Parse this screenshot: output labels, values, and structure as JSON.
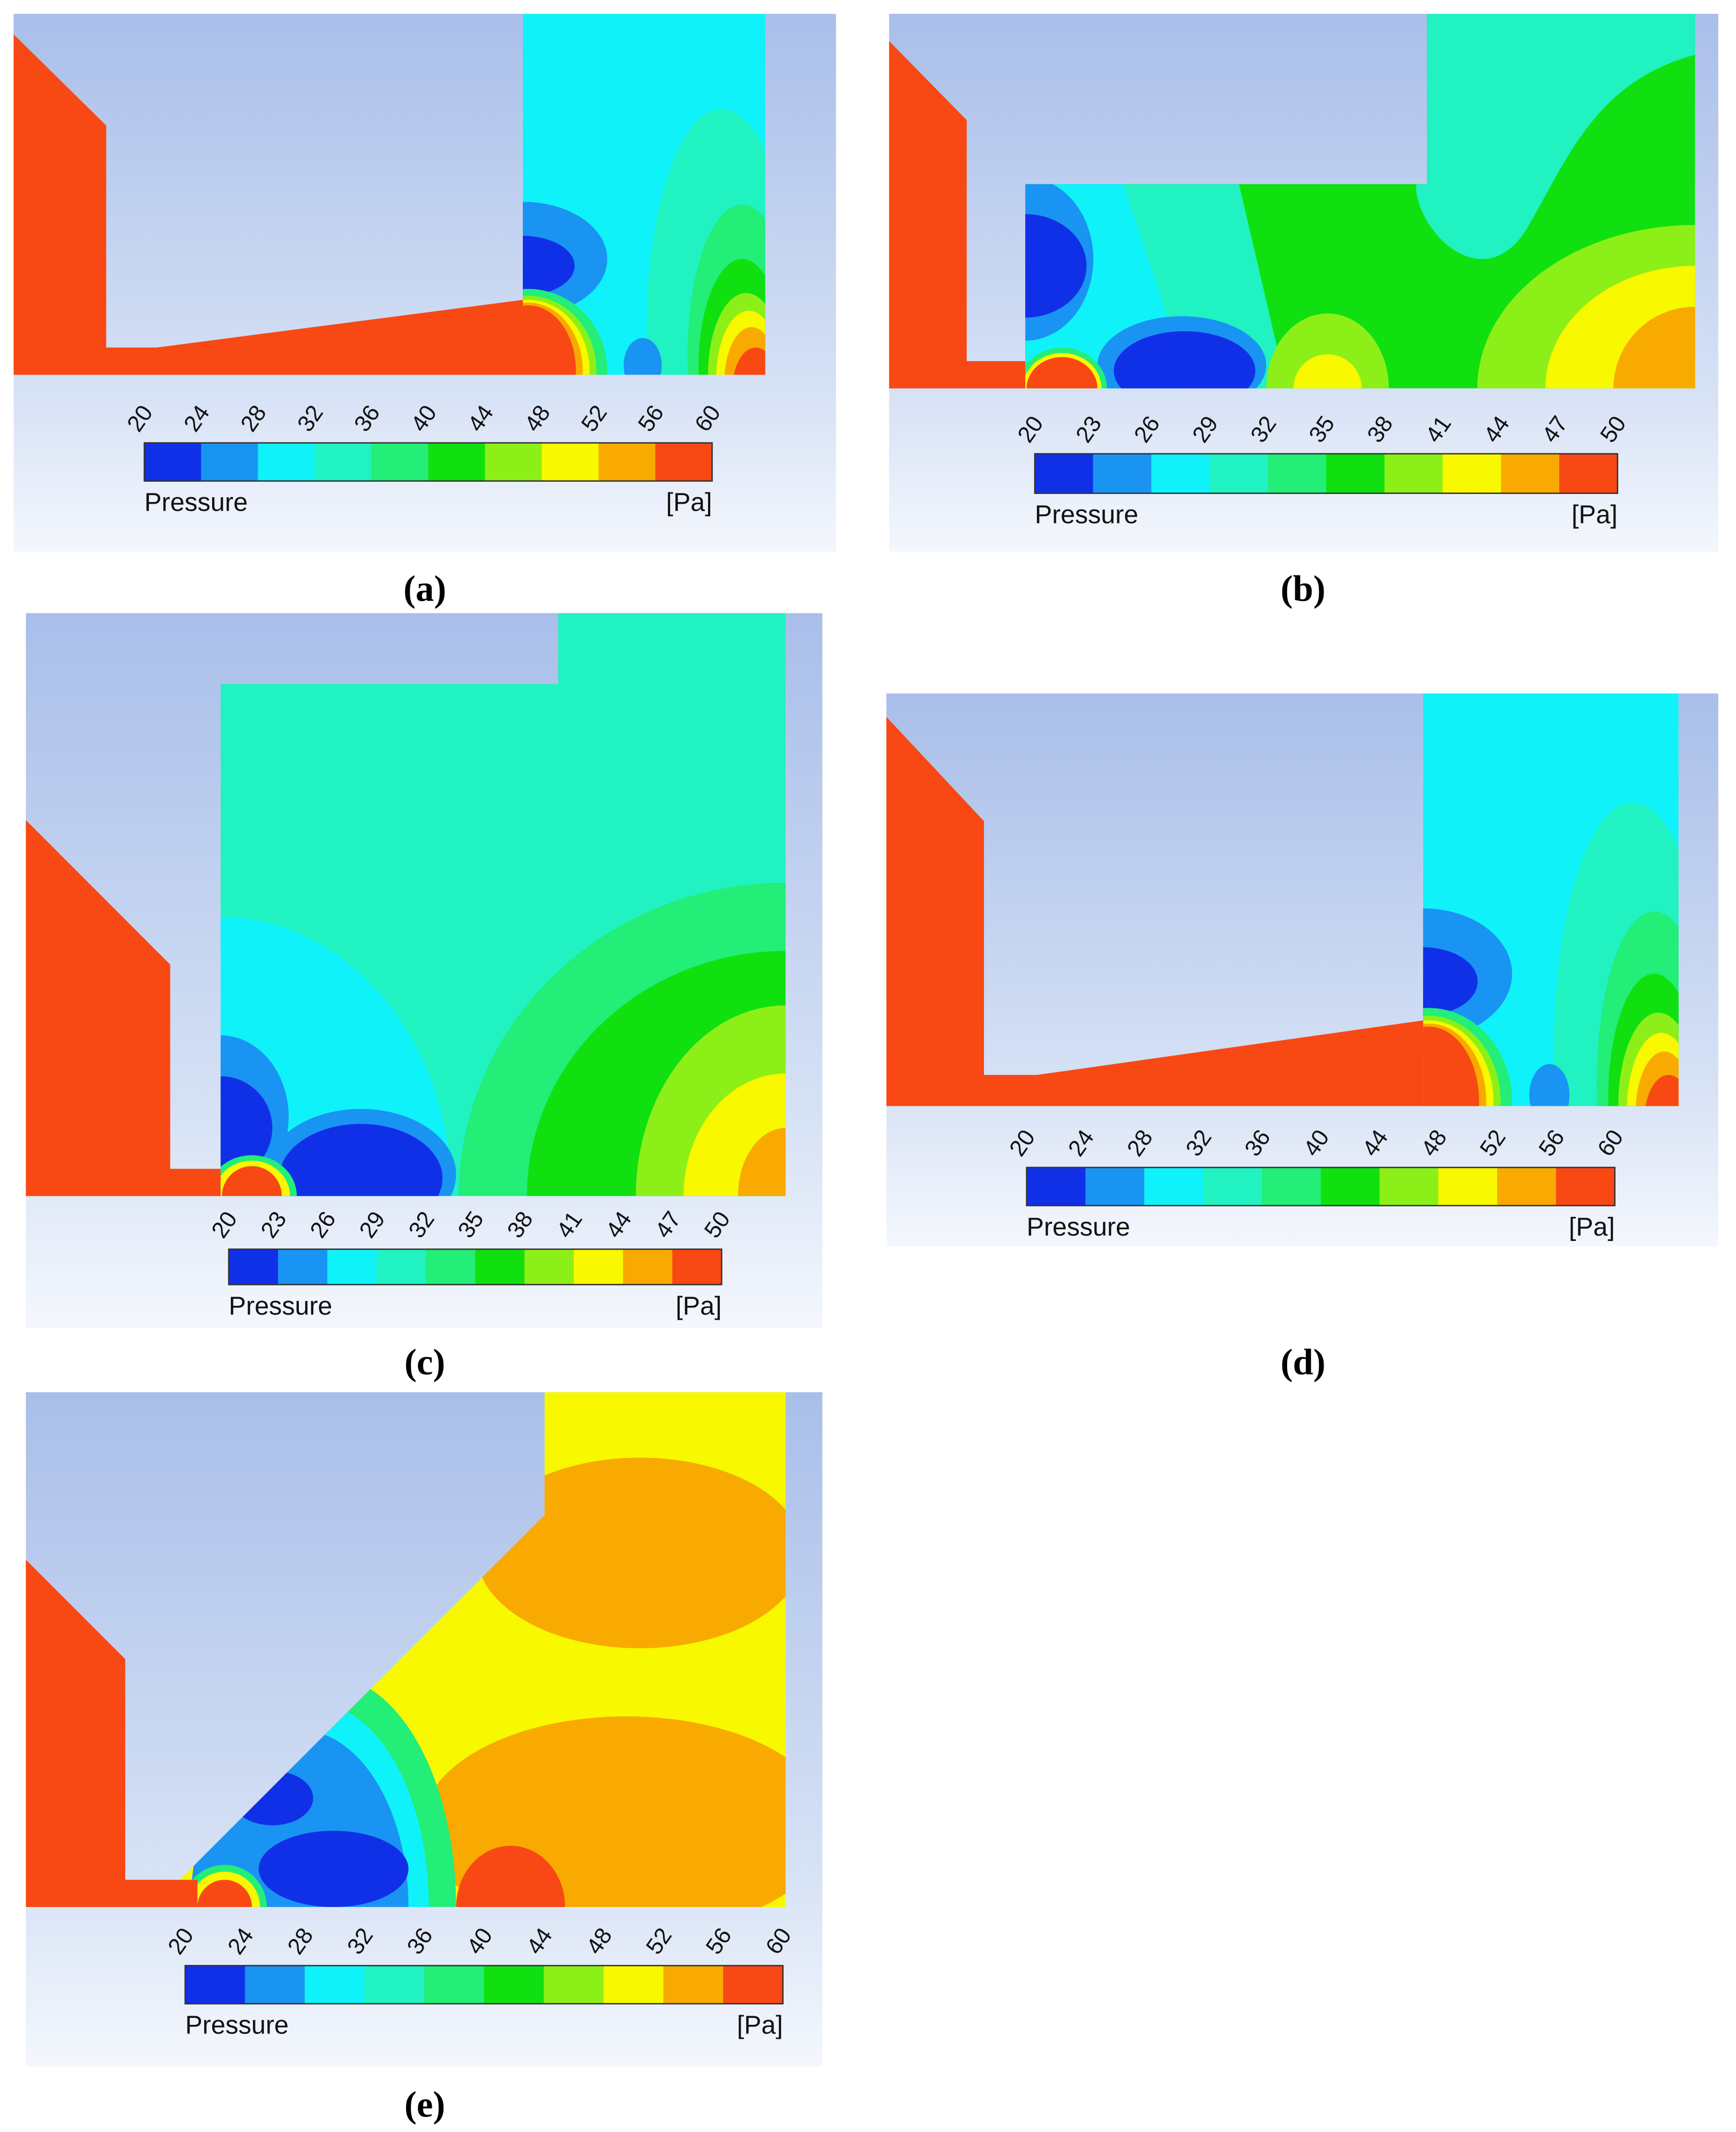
{
  "colorbar_colors": [
    "#1030e8",
    "#1a94f2",
    "#10f2fa",
    "#20f2c2",
    "#22ee78",
    "#10e010",
    "#8cf018",
    "#f8f800",
    "#f8aa00",
    "#f84814"
  ],
  "panels": [
    {
      "label": "(a)",
      "colorbar": {
        "title": "Pressure",
        "unit": "[Pa]",
        "ticks": [
          20,
          24,
          28,
          32,
          36,
          40,
          44,
          48,
          52,
          56,
          60
        ]
      }
    },
    {
      "label": "(b)",
      "colorbar": {
        "title": "Pressure",
        "unit": "[Pa]",
        "ticks": [
          20,
          23,
          26,
          29,
          32,
          35,
          38,
          41,
          44,
          47,
          50
        ]
      }
    },
    {
      "label": "(c)",
      "colorbar": {
        "title": "Pressure",
        "unit": "[Pa]",
        "ticks": [
          20,
          23,
          26,
          29,
          32,
          35,
          38,
          41,
          44,
          47,
          50
        ]
      }
    },
    {
      "label": "(d)",
      "colorbar": {
        "title": "Pressure",
        "unit": "[Pa]",
        "ticks": [
          20,
          24,
          28,
          32,
          36,
          40,
          44,
          48,
          52,
          56,
          60
        ]
      }
    },
    {
      "label": "(e)",
      "colorbar": {
        "title": "Pressure",
        "unit": "[Pa]",
        "ticks": [
          20,
          24,
          28,
          32,
          36,
          40,
          44,
          48,
          52,
          56,
          60
        ]
      }
    }
  ]
}
